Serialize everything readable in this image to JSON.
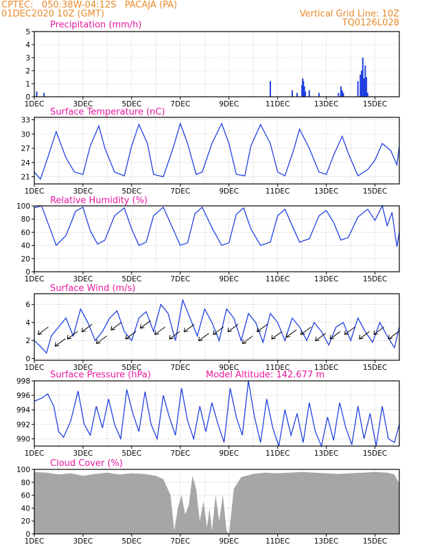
{
  "header": {
    "line1": "CPTEC:   050:38W-04:12S   PACAJA (PA)",
    "line2": "01DEC2020 10Z (GMT)",
    "grid_note": "Vertical Grid Line: 10Z",
    "code": "TQ0126L028"
  },
  "colors": {
    "header": "#e8892a",
    "title": "#e8189e",
    "series": "#1f3fe0",
    "wind": "#000000",
    "cloud": "#a6a6a6",
    "grid": "#9a9a9a"
  },
  "x_ticks": [
    "1DEC",
    "3DEC",
    "5DEC",
    "7DEC",
    "9DEC",
    "11DEC",
    "13DEC",
    "15DEC"
  ],
  "panels": [
    {
      "id": "precip",
      "title": "Precipitation (mm/h)",
      "extra": "",
      "kind": "bar",
      "ylim": [
        0,
        5
      ],
      "yticks": [
        "0",
        "1",
        "2",
        "3",
        "4",
        "5"
      ]
    },
    {
      "id": "temp",
      "title": "Surface Temperature (nC)",
      "extra": "",
      "kind": "line",
      "ylim": [
        19.5,
        33.5
      ],
      "yticks": [
        "21",
        "24",
        "27",
        "30",
        "33"
      ]
    },
    {
      "id": "rh",
      "title": "Relative Humidity (%)",
      "extra": "",
      "kind": "line",
      "ylim": [
        0,
        100
      ],
      "yticks": [
        "0",
        "20",
        "40",
        "60",
        "80",
        "100"
      ]
    },
    {
      "id": "wind",
      "title": "Surface Wind (m/s)",
      "extra": "",
      "kind": "wind",
      "ylim": [
        -0.2,
        7.2
      ],
      "yticks": [
        "0",
        "2",
        "4",
        "6"
      ]
    },
    {
      "id": "pres",
      "title": "Surface Pressure (hPa)",
      "extra": "Model Altitude: 142.677 m",
      "kind": "line",
      "ylim": [
        989,
        998
      ],
      "yticks": [
        "990",
        "992",
        "994",
        "996",
        "998"
      ]
    },
    {
      "id": "cloud",
      "title": "Cloud Cover (%)",
      "extra": "",
      "kind": "area",
      "ylim": [
        0,
        100
      ],
      "yticks": [
        "0",
        "20",
        "40",
        "60",
        "80",
        "100"
      ]
    }
  ],
  "chart_data": [
    {
      "type": "bar",
      "title": "Precipitation (mm/h)",
      "x_unit": "days since 01DEC2020 10Z",
      "xlim": [
        0,
        15
      ],
      "x": [
        0.1,
        0.4,
        9.7,
        10.6,
        10.8,
        11.0,
        11.03,
        11.06,
        11.1,
        11.14,
        11.3,
        11.7,
        12.5,
        12.6,
        12.65,
        12.7,
        13.3,
        13.4,
        13.45,
        13.5,
        13.55,
        13.6,
        13.65,
        13.7
      ],
      "values": [
        0.4,
        0.3,
        1.2,
        0.5,
        0.3,
        0.9,
        1.4,
        1.2,
        0.8,
        0.4,
        0.5,
        0.3,
        0.3,
        0.8,
        0.5,
        0.3,
        1.2,
        1.7,
        2.0,
        3.0,
        1.4,
        2.4,
        1.5,
        0.3
      ],
      "ylim": [
        0,
        5
      ]
    },
    {
      "type": "line",
      "title": "Surface Temperature (nC)",
      "x_unit": "days since 01DEC2020 10Z",
      "xlim": [
        0,
        15
      ],
      "x": [
        0,
        0.25,
        0.55,
        0.9,
        1.3,
        1.65,
        2,
        2.3,
        2.65,
        2.9,
        3.3,
        3.7,
        4.0,
        4.3,
        4.65,
        4.9,
        5.3,
        5.7,
        6.0,
        6.3,
        6.65,
        6.9,
        7.3,
        7.7,
        8.0,
        8.3,
        8.65,
        8.9,
        9.3,
        9.7,
        10.0,
        10.3,
        10.65,
        10.9,
        11.3,
        11.7,
        12.0,
        12.3,
        12.65,
        12.9,
        13.3,
        13.7,
        14.0,
        14.3,
        14.65,
        14.9,
        15.0
      ],
      "values": [
        22,
        20.5,
        25,
        30.5,
        25,
        22,
        21.5,
        27.5,
        31.7,
        27,
        22,
        21.2,
        27.5,
        32,
        28,
        21.5,
        21,
        27,
        32.2,
        28,
        21.5,
        22,
        28,
        32.2,
        28,
        21.5,
        21.2,
        27.5,
        32,
        28,
        22,
        21.2,
        26.5,
        31,
        27,
        22,
        21.5,
        25.5,
        29.5,
        26,
        21.2,
        22.5,
        24.5,
        28,
        26.5,
        23.5,
        27.5
      ],
      "ylim": [
        19.5,
        33.5
      ]
    },
    {
      "type": "line",
      "title": "Relative Humidity (%)",
      "x_unit": "days since 01DEC2020 10Z",
      "xlim": [
        0,
        15
      ],
      "x": [
        0,
        0.3,
        0.6,
        0.9,
        1.3,
        1.7,
        2.0,
        2.3,
        2.6,
        2.9,
        3.3,
        3.7,
        4.0,
        4.3,
        4.6,
        4.9,
        5.3,
        5.7,
        6.0,
        6.3,
        6.6,
        6.9,
        7.3,
        7.7,
        8.0,
        8.3,
        8.6,
        8.9,
        9.3,
        9.7,
        10.0,
        10.3,
        10.6,
        10.9,
        11.3,
        11.7,
        12.0,
        12.3,
        12.6,
        12.9,
        13.3,
        13.7,
        14.0,
        14.3,
        14.5,
        14.7,
        14.9,
        15.0
      ],
      "values": [
        97,
        100,
        70,
        40,
        55,
        92,
        98,
        62,
        42,
        48,
        85,
        97,
        65,
        40,
        45,
        85,
        98,
        65,
        40,
        44,
        88,
        98,
        67,
        40,
        44,
        87,
        97,
        65,
        40,
        45,
        85,
        95,
        70,
        45,
        50,
        85,
        93,
        75,
        48,
        52,
        83,
        95,
        78,
        100,
        70,
        90,
        38,
        60
      ],
      "ylim": [
        0,
        100
      ]
    },
    {
      "type": "line",
      "title": "Surface Wind (m/s)",
      "x_unit": "days since 01DEC2020 10Z",
      "xlim": [
        0,
        15
      ],
      "x": [
        0,
        0.3,
        0.5,
        0.7,
        1.0,
        1.3,
        1.6,
        1.9,
        2.2,
        2.5,
        2.8,
        3.1,
        3.4,
        3.7,
        4.0,
        4.3,
        4.6,
        4.9,
        5.2,
        5.5,
        5.8,
        6.1,
        6.4,
        6.7,
        7.0,
        7.3,
        7.6,
        7.9,
        8.2,
        8.5,
        8.8,
        9.1,
        9.4,
        9.7,
        10.0,
        10.3,
        10.6,
        10.9,
        11.2,
        11.5,
        11.8,
        12.1,
        12.4,
        12.7,
        13.0,
        13.3,
        13.6,
        13.9,
        14.2,
        14.5,
        14.8,
        15.0
      ],
      "values": [
        2.0,
        1.2,
        0.6,
        2.5,
        3.5,
        4.5,
        2.5,
        5.5,
        4.0,
        2.0,
        3.0,
        4.5,
        5.3,
        3.0,
        2.0,
        4.5,
        5.2,
        3.0,
        6.0,
        5.0,
        2.0,
        6.5,
        4.5,
        2.5,
        5.5,
        4.0,
        2.0,
        5.5,
        4.5,
        2.0,
        5.0,
        4.0,
        1.8,
        5.0,
        4.0,
        2.0,
        4.5,
        3.5,
        2.0,
        4.0,
        3.0,
        1.5,
        3.5,
        4.0,
        2.0,
        4.5,
        3.0,
        1.8,
        4.0,
        2.5,
        1.2,
        3.5
      ],
      "ylim": [
        -0.2,
        7.2
      ],
      "arrows_x": [
        0.35,
        1.05,
        1.55,
        2.15,
        2.75,
        3.35,
        3.95,
        4.55,
        5.15,
        5.75,
        6.35,
        6.95,
        7.55,
        8.15,
        8.75,
        9.35,
        9.95,
        10.55,
        11.15,
        11.75,
        12.35,
        12.95,
        13.55,
        14.15,
        14.75
      ],
      "arrows_speed": [
        3.5,
        2.2,
        3.0,
        3.8,
        2.5,
        4.0,
        3.0,
        4.2,
        3.5,
        3.0,
        3.8,
        2.8,
        3.5,
        3.8,
        2.5,
        3.8,
        3.0,
        3.2,
        3.5,
        2.8,
        3.0,
        3.5,
        3.0,
        3.5,
        3.0
      ]
    },
    {
      "type": "line",
      "title": "Surface Pressure (hPa)",
      "x_unit": "days since 01DEC2020 10Z",
      "xlim": [
        0,
        15
      ],
      "x": [
        0,
        0.3,
        0.55,
        0.8,
        1.0,
        1.2,
        1.5,
        1.8,
        2.05,
        2.3,
        2.55,
        2.8,
        3.05,
        3.3,
        3.55,
        3.8,
        4.05,
        4.3,
        4.55,
        4.8,
        5.05,
        5.3,
        5.55,
        5.8,
        6.05,
        6.3,
        6.55,
        6.8,
        7.05,
        7.3,
        7.55,
        7.8,
        8.05,
        8.3,
        8.55,
        8.8,
        9.05,
        9.3,
        9.55,
        9.8,
        10.05,
        10.3,
        10.55,
        10.8,
        11.05,
        11.3,
        11.55,
        11.8,
        12.05,
        12.3,
        12.55,
        12.8,
        13.05,
        13.3,
        13.55,
        13.8,
        14.05,
        14.3,
        14.55,
        14.8,
        15.0
      ],
      "values": [
        995.2,
        995.6,
        996.2,
        994.5,
        991.0,
        990.2,
        992.5,
        996.6,
        992.0,
        990.5,
        994.5,
        991.5,
        995.5,
        992.0,
        990.0,
        996.8,
        993.5,
        991.0,
        996.5,
        992.0,
        990.0,
        996.0,
        993.0,
        990.5,
        997.0,
        992.5,
        990.0,
        994.5,
        991.0,
        995.0,
        992.0,
        989.5,
        997.0,
        993.0,
        990.5,
        998.0,
        993.0,
        989.5,
        995.5,
        991.5,
        989.0,
        994.0,
        990.5,
        993.5,
        989.5,
        995.0,
        991.0,
        989.0,
        993.0,
        989.8,
        995.0,
        991.5,
        989.2,
        994.5,
        990.0,
        993.5,
        989.0,
        994.5,
        990.0,
        989.5,
        992.0
      ],
      "ylim": [
        989,
        998
      ]
    },
    {
      "type": "area",
      "title": "Cloud Cover (%)",
      "x_unit": "days since 01DEC2020 10Z",
      "xlim": [
        0,
        15
      ],
      "x": [
        0,
        0.5,
        1.0,
        1.5,
        2.0,
        2.5,
        3.0,
        3.5,
        4.0,
        4.5,
        5.0,
        5.3,
        5.6,
        5.75,
        5.9,
        6.05,
        6.2,
        6.35,
        6.5,
        6.65,
        6.8,
        6.95,
        7.1,
        7.2,
        7.3,
        7.45,
        7.6,
        7.75,
        7.9,
        8.0,
        8.2,
        8.5,
        9.0,
        9.5,
        10.0,
        10.5,
        11.0,
        11.5,
        12.0,
        12.5,
        13.0,
        13.5,
        14.0,
        14.5,
        14.8,
        15.0
      ],
      "values": [
        96,
        95,
        92,
        94,
        90,
        93,
        95,
        92,
        94,
        93,
        90,
        85,
        60,
        5,
        40,
        60,
        30,
        45,
        90,
        70,
        20,
        50,
        10,
        40,
        5,
        60,
        20,
        60,
        5,
        0,
        70,
        88,
        93,
        95,
        94,
        95,
        96,
        95,
        94,
        93,
        94,
        95,
        96,
        95,
        92,
        78
      ],
      "ylim": [
        0,
        100
      ]
    }
  ]
}
